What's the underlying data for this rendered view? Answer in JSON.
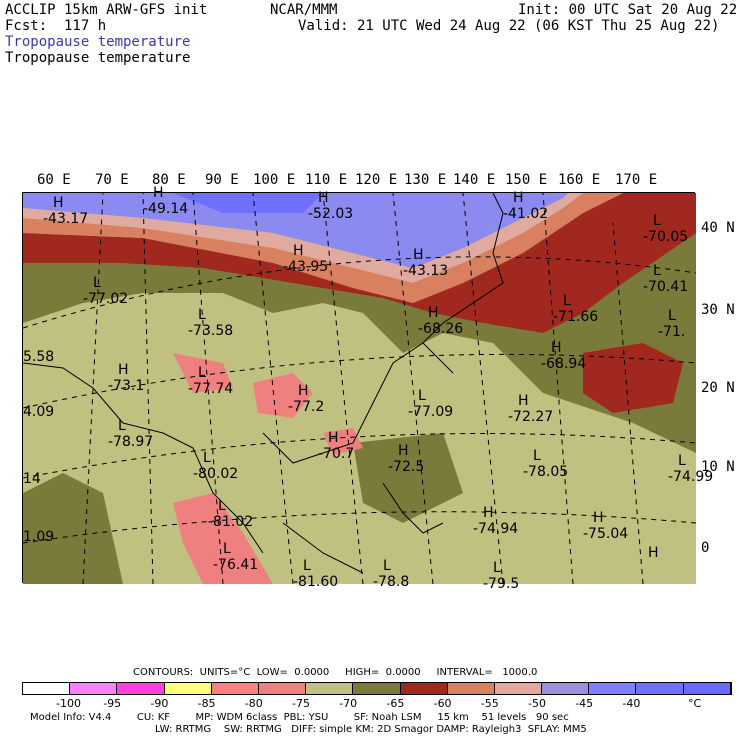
{
  "header": {
    "model": "ACCLIP 15km ARW-GFS init",
    "forecast": "Fcst:  117 h",
    "center": "NCAR/MMM",
    "init": "Init: 00 UTC Sat 20 Aug 22",
    "valid": "Valid: 21 UTC Wed 24 Aug 22 (06 KST Thu 25 Aug 22)",
    "field_title_colored": "Tropopause temperature",
    "field_title": "Tropopause temperature"
  },
  "map": {
    "lon_labels": [
      "60 E",
      "70 E",
      "80 E",
      "90 E",
      "100 E",
      "110 E",
      "120 E",
      "130 E",
      "140 E",
      "150 E",
      "160 E",
      "170 E"
    ],
    "lat_labels": [
      "40 N",
      "30 N",
      "20 N",
      "10 N",
      "0"
    ],
    "highs_lows": [
      {
        "marker": "H",
        "value": "-43.17"
      },
      {
        "marker": "H",
        "value": "-49.14"
      },
      {
        "marker": "H",
        "value": "-52.03"
      },
      {
        "marker": "H",
        "value": "-41.02"
      },
      {
        "marker": "H",
        "value": "-43.95"
      },
      {
        "marker": "H",
        "value": "-43.13"
      },
      {
        "marker": "L",
        "value": "-70.05"
      },
      {
        "marker": "L",
        "value": "-77.02"
      },
      {
        "marker": "L",
        "value": "-70.41"
      },
      {
        "marker": "L",
        "value": "-73.58"
      },
      {
        "marker": "L",
        "value": "-71.66"
      },
      {
        "marker": "H",
        "value": "-68.26"
      },
      {
        "marker": "L",
        "value": "-71."
      },
      {
        "marker": "H",
        "value": "-68.94"
      },
      {
        "marker": "",
        "value": "5.58"
      },
      {
        "marker": "H",
        "value": "-73.1"
      },
      {
        "marker": "L",
        "value": "-77.74"
      },
      {
        "marker": "H",
        "value": "-77.2"
      },
      {
        "marker": "L",
        "value": "-77.09"
      },
      {
        "marker": "H",
        "value": "-72.27"
      },
      {
        "marker": "",
        "value": "4.09"
      },
      {
        "marker": "L",
        "value": "-78.97"
      },
      {
        "marker": "H",
        "value": "-70.7"
      },
      {
        "marker": "H",
        "value": "-72.5"
      },
      {
        "marker": "L",
        "value": "-78.05"
      },
      {
        "marker": "L",
        "value": "-74.99"
      },
      {
        "marker": "",
        "value": "14"
      },
      {
        "marker": "L",
        "value": "-80.02"
      },
      {
        "marker": "L",
        "value": "-81.02"
      },
      {
        "marker": "H",
        "value": "-74.94"
      },
      {
        "marker": "H",
        "value": "-75.04"
      },
      {
        "marker": "",
        "value": "1.09"
      },
      {
        "marker": "L",
        "value": "-76.41"
      },
      {
        "marker": "L",
        "value": "-81.60"
      },
      {
        "marker": "L",
        "value": "-78.8"
      },
      {
        "marker": "L",
        "value": "-79.5"
      },
      {
        "marker": "H",
        "value": ""
      }
    ]
  },
  "contours": {
    "line": "CONTOURS:  UNITS=°C  LOW=  0.0000     HIGH=  0.0000     INTERVAL=   1000.0"
  },
  "colorbar": {
    "colors": [
      "#ffffff",
      "#ff80ff",
      "#ff40e0",
      "#ffff80",
      "#ff8080",
      "#f08080",
      "#c0c080",
      "#7a7a3a",
      "#a0281e",
      "#d88060",
      "#e0aaa0",
      "#9a90e0",
      "#8080ff",
      "#7070ff",
      "#6a6aff"
    ],
    "tick_labels": [
      "-100",
      "-95",
      "-90",
      "-85",
      "-80",
      "-75",
      "-70",
      "-65",
      "-60",
      "-55",
      "-50",
      "-45",
      "-40"
    ],
    "unit": "°C"
  },
  "model_info": {
    "line1": "Model Info: V4.4        CU: KF        MP: WDM 6class  PBL: YSU        SF: Noah LSM     15 km    51 levels   90 sec",
    "line2": "LW: RRTMG    SW: RRTMG   DIFF: simple KM: 2D Smagor DAMP: Rayleigh3  SFLAY: MM5"
  }
}
